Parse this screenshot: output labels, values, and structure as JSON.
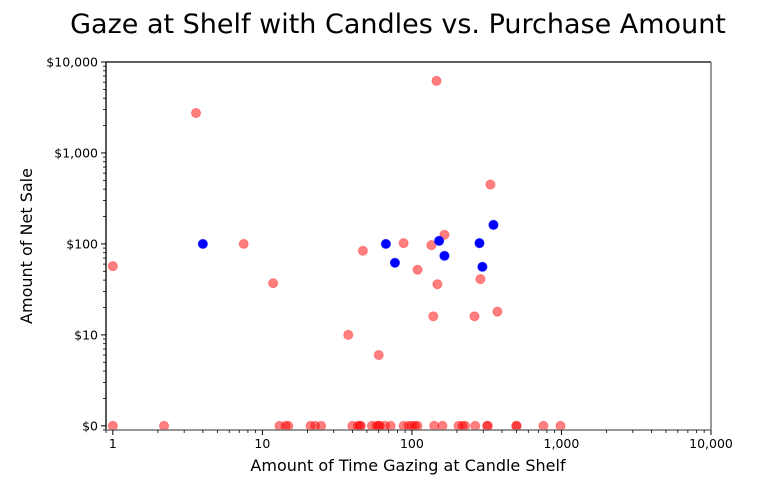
{
  "chart_data": {
    "type": "scatter",
    "title": "Gaze at Shelf with Candles vs. Purchase Amount",
    "xlabel": "Amount of Time Gazing at Candle Shelf",
    "ylabel": "Amount of Net Sale",
    "xscale": "log",
    "yscale": "log",
    "xlim": [
      0.9,
      10000
    ],
    "ylim": [
      0.9,
      10000
    ],
    "grid": false,
    "legend": "none",
    "xticks": [
      {
        "value": 1,
        "label": "1"
      },
      {
        "value": 10,
        "label": "10"
      },
      {
        "value": 100,
        "label": "100"
      },
      {
        "value": 1000,
        "label": "1,000"
      },
      {
        "value": 10000,
        "label": "10,000"
      }
    ],
    "yticks": [
      {
        "value": 1,
        "label": "$0"
      },
      {
        "value": 10,
        "label": "$10"
      },
      {
        "value": 100,
        "label": "$100"
      },
      {
        "value": 1000,
        "label": "$1,000"
      },
      {
        "value": 10000,
        "label": "$10,000"
      }
    ],
    "series": [
      {
        "name": "red",
        "color": "#ff0000",
        "opacity": 0.5,
        "points": [
          {
            "x": 3.6,
            "y": 2750
          },
          {
            "x": 7.5,
            "y": 100
          },
          {
            "x": 1,
            "y": 57
          },
          {
            "x": 11.8,
            "y": 37
          },
          {
            "x": 146,
            "y": 6200
          },
          {
            "x": 335,
            "y": 450
          },
          {
            "x": 165,
            "y": 126
          },
          {
            "x": 88,
            "y": 102
          },
          {
            "x": 135,
            "y": 97
          },
          {
            "x": 47,
            "y": 84
          },
          {
            "x": 109,
            "y": 52
          },
          {
            "x": 287,
            "y": 41
          },
          {
            "x": 148,
            "y": 36
          },
          {
            "x": 373,
            "y": 18
          },
          {
            "x": 139,
            "y": 16
          },
          {
            "x": 262,
            "y": 16
          },
          {
            "x": 37.5,
            "y": 10
          },
          {
            "x": 60,
            "y": 6
          },
          {
            "x": 1,
            "y": 1
          },
          {
            "x": 2.2,
            "y": 1
          },
          {
            "x": 13,
            "y": 1
          },
          {
            "x": 14.3,
            "y": 1
          },
          {
            "x": 14.9,
            "y": 1
          },
          {
            "x": 21,
            "y": 1
          },
          {
            "x": 22.5,
            "y": 1
          },
          {
            "x": 24.7,
            "y": 1
          },
          {
            "x": 40,
            "y": 1
          },
          {
            "x": 43.5,
            "y": 1
          },
          {
            "x": 45,
            "y": 1
          },
          {
            "x": 45.5,
            "y": 1
          },
          {
            "x": 54,
            "y": 1
          },
          {
            "x": 58,
            "y": 1
          },
          {
            "x": 60,
            "y": 1
          },
          {
            "x": 61,
            "y": 1
          },
          {
            "x": 66,
            "y": 1
          },
          {
            "x": 72,
            "y": 1
          },
          {
            "x": 88,
            "y": 1
          },
          {
            "x": 95,
            "y": 1
          },
          {
            "x": 100,
            "y": 1
          },
          {
            "x": 105,
            "y": 1
          },
          {
            "x": 109,
            "y": 1
          },
          {
            "x": 141,
            "y": 1
          },
          {
            "x": 160,
            "y": 1
          },
          {
            "x": 205,
            "y": 1
          },
          {
            "x": 218,
            "y": 1
          },
          {
            "x": 227,
            "y": 1
          },
          {
            "x": 265,
            "y": 1
          },
          {
            "x": 318,
            "y": 1
          },
          {
            "x": 322,
            "y": 1
          },
          {
            "x": 498,
            "y": 1
          },
          {
            "x": 502,
            "y": 1
          },
          {
            "x": 757,
            "y": 1
          },
          {
            "x": 985,
            "y": 1
          }
        ]
      },
      {
        "name": "blue",
        "color": "#0000ff",
        "opacity": 1,
        "points": [
          {
            "x": 4,
            "y": 100
          },
          {
            "x": 67,
            "y": 100
          },
          {
            "x": 77,
            "y": 62
          },
          {
            "x": 152,
            "y": 108
          },
          {
            "x": 165,
            "y": 74
          },
          {
            "x": 283,
            "y": 102
          },
          {
            "x": 296,
            "y": 56
          },
          {
            "x": 351,
            "y": 162
          }
        ]
      }
    ]
  }
}
